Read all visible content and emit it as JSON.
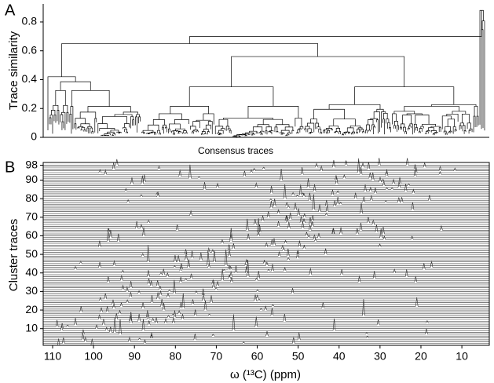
{
  "panel_a": {
    "label": "A",
    "y_label": "Trace similarity",
    "x_label": "Consensus traces",
    "ylim": [
      0,
      0.925
    ],
    "yticks": [
      0,
      0.2,
      0.4,
      0.6,
      0.8
    ]
  },
  "panel_b": {
    "label": "B",
    "y_label": "Cluster traces",
    "x_label": "ω (¹³C)   (ppm)",
    "xlim": [
      112.3,
      3.3
    ],
    "xticks": [
      110,
      100,
      90,
      80,
      70,
      60,
      50,
      40,
      30,
      20,
      10
    ],
    "ylim": [
      1,
      99.5
    ],
    "yticks": [
      10,
      20,
      30,
      40,
      50,
      60,
      70,
      80,
      90,
      98
    ]
  }
}
